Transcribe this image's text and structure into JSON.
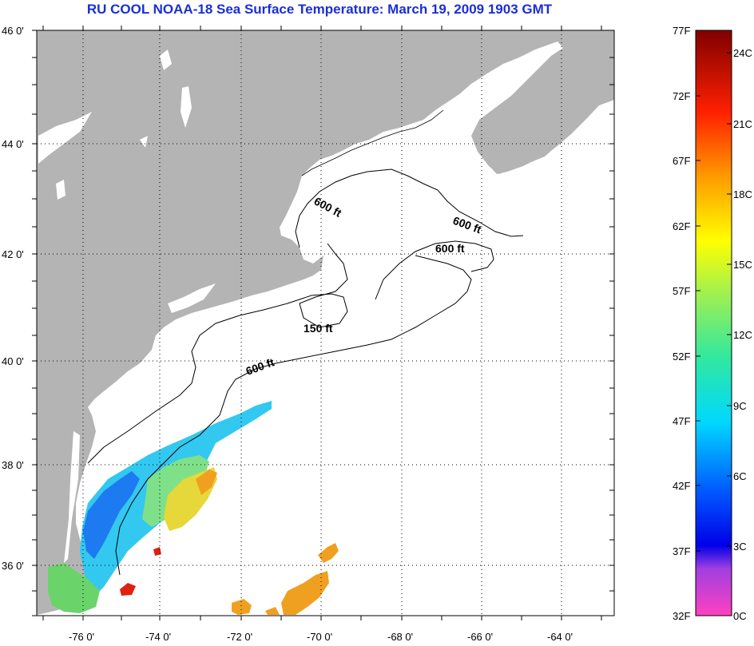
{
  "title": "RU COOL  NOAA-18  Sea Surface Temperature:  March 19, 2009 1903 GMT",
  "map": {
    "lat_labels": [
      "46 0'",
      "44 0'",
      "42 0'",
      "40 0'",
      "38 0'",
      "36 0'"
    ],
    "lon_labels": [
      "-76 0'",
      "-74 0'",
      "-72 0'",
      "-70 0'",
      "-68 0'",
      "-66 0'",
      "-64 0'"
    ],
    "contour_labels": [
      "600 ft",
      "600 ft",
      "600 ft",
      "150 ft",
      "600 ft"
    ],
    "colors": {
      "land": "#b4b4b4",
      "ocean": "#ffffff",
      "grid": "#000000"
    }
  },
  "colorbar": {
    "fahrenheit_labels": [
      "77F",
      "72F",
      "67F",
      "62F",
      "57F",
      "52F",
      "47F",
      "42F",
      "37F",
      "32F"
    ],
    "celsius_labels": [
      "24C",
      "21C",
      "18C",
      "15C",
      "12C",
      "9C",
      "6C",
      "3C",
      "0C"
    ],
    "min_f": 32,
    "max_f": 77
  }
}
